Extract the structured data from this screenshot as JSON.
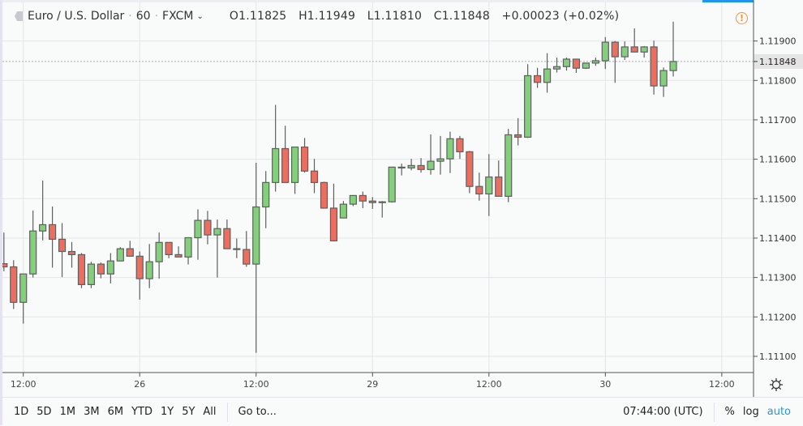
{
  "header": {
    "symbol": "Euro / U.S. Dollar",
    "interval": "60",
    "exchange": "FXCM",
    "open": "O1.11825",
    "high": "H1.11949",
    "low": "L1.11810",
    "close": "C1.11848",
    "change": "+0.00023 (+0.02%)"
  },
  "toolbar": {
    "ranges": [
      "1D",
      "5D",
      "1M",
      "3M",
      "6M",
      "YTD",
      "1Y",
      "5Y",
      "All"
    ],
    "goto": "Go to...",
    "time": "07:44:00 (UTC)",
    "percent": "%",
    "log": "log",
    "auto": "auto"
  },
  "colors": {
    "up": "#84cf7b",
    "down": "#ec6e60",
    "accent": "#1e96f0",
    "warning": "#f7923a"
  },
  "chart_data": {
    "type": "candlestick",
    "title": "Euro / U.S. Dollar, 60, FXCM",
    "ylim": [
      1.1107,
      1.1199
    ],
    "yticks": [
      "1.11100",
      "1.11200",
      "1.11300",
      "1.11400",
      "1.11500",
      "1.11600",
      "1.11700",
      "1.11800",
      "1.11900"
    ],
    "xticks": [
      {
        "label": "12:00",
        "bar": 2
      },
      {
        "label": "26",
        "bar": 14
      },
      {
        "label": "12:00",
        "bar": 26
      },
      {
        "label": "29",
        "bar": 38
      },
      {
        "label": "12:00",
        "bar": 50
      },
      {
        "label": "30",
        "bar": 62
      },
      {
        "label": "12:00",
        "bar": 74
      }
    ],
    "last_price": "1.11848",
    "ohlc": [
      [
        1.11335,
        1.11414,
        1.11316,
        1.11327
      ],
      [
        1.11327,
        1.11344,
        1.1122,
        1.11237
      ],
      [
        1.11237,
        1.11309,
        1.11183,
        1.11309
      ],
      [
        1.11309,
        1.1147,
        1.113,
        1.11418
      ],
      [
        1.11418,
        1.11546,
        1.11394,
        1.11434
      ],
      [
        1.11434,
        1.1148,
        1.11325,
        1.11397
      ],
      [
        1.11397,
        1.11438,
        1.11301,
        1.11366
      ],
      [
        1.11366,
        1.1139,
        1.11325,
        1.11358
      ],
      [
        1.11358,
        1.11362,
        1.11273,
        1.11282
      ],
      [
        1.11282,
        1.1134,
        1.11273,
        1.11334
      ],
      [
        1.11334,
        1.11338,
        1.11298,
        1.11309
      ],
      [
        1.11309,
        1.11362,
        1.11285,
        1.11342
      ],
      [
        1.11342,
        1.11377,
        1.11342,
        1.11373
      ],
      [
        1.11373,
        1.11393,
        1.11354,
        1.11354
      ],
      [
        1.11354,
        1.11366,
        1.11244,
        1.11297
      ],
      [
        1.11297,
        1.11385,
        1.11273,
        1.1134
      ],
      [
        1.1134,
        1.11414,
        1.11297,
        1.11389
      ],
      [
        1.11389,
        1.11389,
        1.11349,
        1.11358
      ],
      [
        1.11358,
        1.11379,
        1.11352,
        1.11352
      ],
      [
        1.11352,
        1.11401,
        1.11333,
        1.11401
      ],
      [
        1.11401,
        1.11473,
        1.11345,
        1.11445
      ],
      [
        1.11445,
        1.11469,
        1.11384,
        1.11408
      ],
      [
        1.11408,
        1.11447,
        1.113,
        1.11424
      ],
      [
        1.11424,
        1.11447,
        1.11373,
        1.11373
      ],
      [
        1.11373,
        1.11399,
        1.11349,
        1.11371
      ],
      [
        1.11371,
        1.11418,
        1.11327,
        1.11334
      ],
      [
        1.11334,
        1.11591,
        1.11109,
        1.11479
      ],
      [
        1.11479,
        1.1157,
        1.11425,
        1.11541
      ],
      [
        1.11541,
        1.11738,
        1.11518,
        1.11627
      ],
      [
        1.11627,
        1.11685,
        1.11541,
        1.11541
      ],
      [
        1.11541,
        1.11631,
        1.11512,
        1.11631
      ],
      [
        1.11631,
        1.11654,
        1.11566,
        1.1157
      ],
      [
        1.1157,
        1.11601,
        1.11514,
        1.11541
      ],
      [
        1.11541,
        1.11543,
        1.11476,
        1.11476
      ],
      [
        1.11476,
        1.11538,
        1.11393,
        1.11393
      ],
      [
        1.11451,
        1.11494,
        1.11451,
        1.11486
      ],
      [
        1.11486,
        1.11508,
        1.11481,
        1.11508
      ],
      [
        1.11508,
        1.11518,
        1.11476,
        1.11494
      ],
      [
        1.11494,
        1.11504,
        1.11474,
        1.1149
      ],
      [
        1.11492,
        1.11494,
        1.11452,
        1.1149
      ],
      [
        1.11492,
        1.1158,
        1.1149,
        1.1158
      ],
      [
        1.1158,
        1.11589,
        1.11559,
        1.11578
      ],
      [
        1.11578,
        1.11601,
        1.11572,
        1.11584
      ],
      [
        1.11584,
        1.11603,
        1.11566,
        1.11574
      ],
      [
        1.11574,
        1.11663,
        1.11561,
        1.11595
      ],
      [
        1.11595,
        1.11659,
        1.11561,
        1.11601
      ],
      [
        1.11601,
        1.1167,
        1.11565,
        1.11652
      ],
      [
        1.11652,
        1.11659,
        1.11601,
        1.11619
      ],
      [
        1.11619,
        1.11621,
        1.11514,
        1.11531
      ],
      [
        1.11531,
        1.11566,
        1.11495,
        1.11512
      ],
      [
        1.11512,
        1.11613,
        1.11456,
        1.11555
      ],
      [
        1.11555,
        1.11597,
        1.11506,
        1.11506
      ],
      [
        1.11506,
        1.11677,
        1.11491,
        1.11662
      ],
      [
        1.11662,
        1.11704,
        1.11635,
        1.11656
      ],
      [
        1.11656,
        1.11841,
        1.11654,
        1.11812
      ],
      [
        1.11812,
        1.11832,
        1.11781,
        1.11795
      ],
      [
        1.11795,
        1.11869,
        1.11769,
        1.11829
      ],
      [
        1.11829,
        1.11858,
        1.1182,
        1.11835
      ],
      [
        1.11835,
        1.11858,
        1.11825,
        1.11854
      ],
      [
        1.11854,
        1.11854,
        1.11819,
        1.11831
      ],
      [
        1.11831,
        1.11844,
        1.11829,
        1.11844
      ],
      [
        1.11844,
        1.11858,
        1.11837,
        1.1185
      ],
      [
        1.1185,
        1.1191,
        1.11829,
        1.11897
      ],
      [
        1.11897,
        1.119,
        1.11794,
        1.1186
      ],
      [
        1.1186,
        1.11899,
        1.11852,
        1.11885
      ],
      [
        1.11885,
        1.11932,
        1.11872,
        1.11872
      ],
      [
        1.11872,
        1.11887,
        1.11858,
        1.11885
      ],
      [
        1.11885,
        1.11901,
        1.11764,
        1.11786
      ],
      [
        1.11786,
        1.11833,
        1.11758,
        1.11825
      ],
      [
        1.11825,
        1.11949,
        1.1181,
        1.11848
      ]
    ]
  }
}
